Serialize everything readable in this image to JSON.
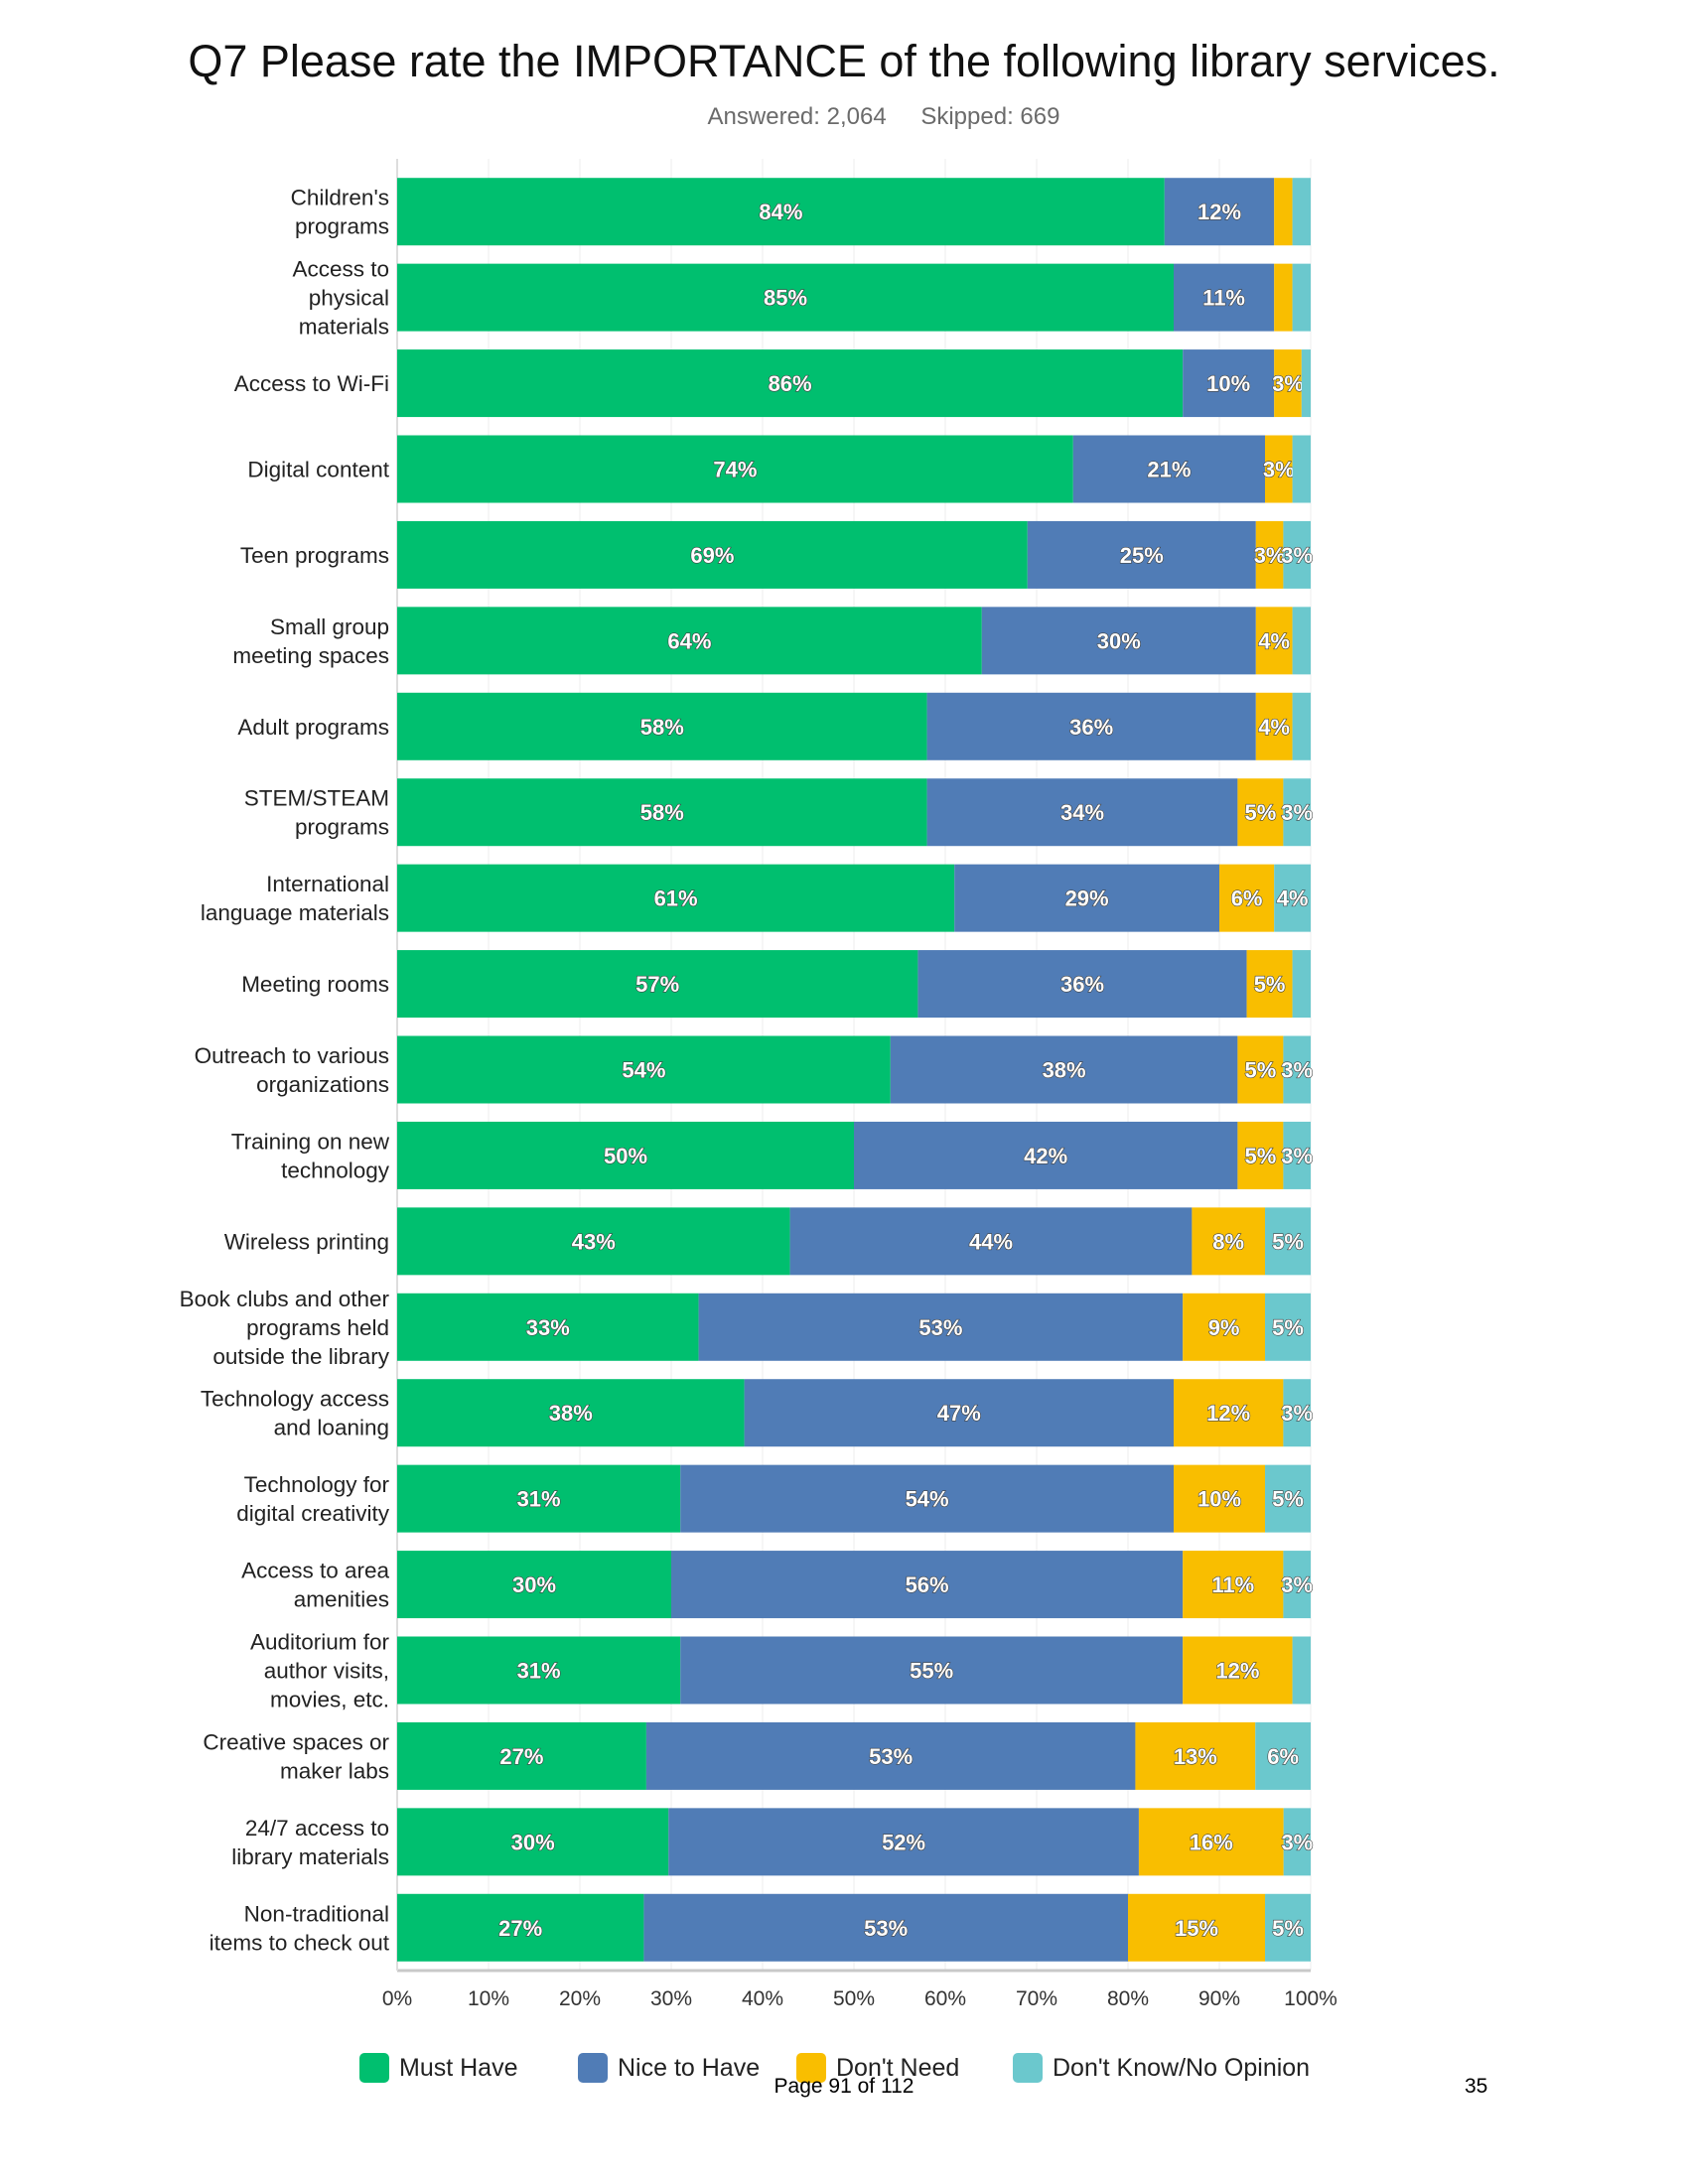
{
  "title": "Q7 Please rate the IMPORTANCE of the following library services.",
  "answered": "Answered: 2,064",
  "skipped": "Skipped: 669",
  "footer": {
    "page_text": "Page 91 of 112",
    "page_number": "35"
  },
  "colors": {
    "must_have": "#00BF6F",
    "nice_to_have": "#507CB6",
    "dont_need": "#F9BE00",
    "dont_know": "#6BC8CD"
  },
  "chart_data": {
    "type": "bar",
    "orientation": "horizontal",
    "stacked": true,
    "categories": [
      "Children's programs",
      "Access to physical materials",
      "Access to Wi-Fi",
      "Digital content",
      "Teen programs",
      "Small group meeting spaces",
      "Adult programs",
      "STEM/STEAM programs",
      "International language materials",
      "Meeting rooms",
      "Outreach to various organizations",
      "Training on new technology",
      "Wireless printing",
      "Book clubs and other programs held outside the library",
      "Technology access and loaning",
      "Technology for digital creativity",
      "Access to area amenities",
      "Auditorium for author visits, movies, etc.",
      "Creative spaces or maker labs",
      "24/7 access to library materials",
      "Non-traditional items to check out"
    ],
    "series": [
      {
        "name": "Must Have",
        "values": [
          84,
          85,
          86,
          74,
          69,
          64,
          58,
          58,
          61,
          57,
          54,
          50,
          43,
          33,
          38,
          31,
          30,
          31,
          27,
          30,
          27
        ]
      },
      {
        "name": "Nice to Have",
        "values": [
          12,
          11,
          10,
          21,
          25,
          30,
          36,
          34,
          29,
          36,
          38,
          42,
          44,
          53,
          47,
          54,
          56,
          55,
          53,
          52,
          53
        ]
      },
      {
        "name": "Don't Need",
        "values": [
          2,
          2,
          3,
          3,
          3,
          4,
          4,
          5,
          6,
          5,
          5,
          5,
          8,
          9,
          12,
          10,
          11,
          12,
          13,
          16,
          15
        ]
      },
      {
        "name": "Don't Know/No Opinion",
        "values": [
          2,
          2,
          1,
          2,
          3,
          2,
          2,
          3,
          4,
          2,
          3,
          3,
          5,
          5,
          3,
          5,
          3,
          2,
          6,
          3,
          5
        ]
      }
    ],
    "xlim": [
      0,
      100
    ],
    "x_ticks": [
      "0%",
      "10%",
      "20%",
      "30%",
      "40%",
      "50%",
      "60%",
      "70%",
      "80%",
      "90%",
      "100%"
    ],
    "grid": true,
    "legend": "bottom"
  }
}
